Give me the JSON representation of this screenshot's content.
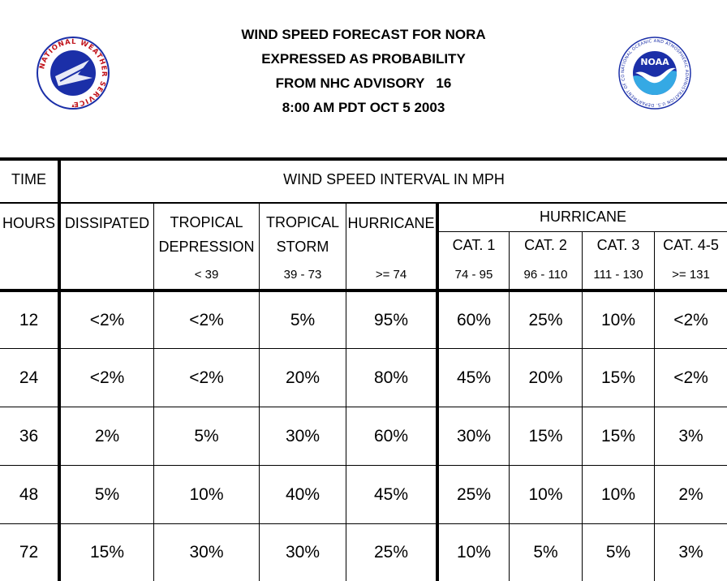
{
  "title": {
    "line1": "WIND SPEED FORECAST FOR NORA",
    "line2": "EXPRESSED AS PROBABILITY",
    "line3": "FROM NHC ADVISORY   16",
    "line4": "8:00 AM PDT OCT 5 2003"
  },
  "logos": {
    "nws": {
      "text": "NATIONAL WEATHER SERVICE"
    },
    "noaa": {
      "abbr": "NOAA",
      "ring_text": "NATIONAL OCEANIC AND ATMOSPHERIC ADMINISTRATION U.S. DEPARTMENT OF COMMERCE"
    }
  },
  "table": {
    "time_label": "TIME",
    "hours_label": "HOURS",
    "interval_label": "WIND SPEED INTERVAL IN MPH",
    "dissipated_label": "DISSIPATED",
    "td": {
      "line1": "TROPICAL",
      "line2": "DEPRESSION",
      "range": "< 39"
    },
    "ts": {
      "line1": "TROPICAL",
      "line2": "STORM",
      "range": "39 - 73"
    },
    "hu": {
      "line1": "HURRICANE",
      "range": ">= 74"
    },
    "hurricane_group": "HURRICANE",
    "cats": [
      {
        "label": "CAT. 1",
        "range": "74 - 95"
      },
      {
        "label": "CAT. 2",
        "range": "96 - 110"
      },
      {
        "label": "CAT. 3",
        "range": "111 - 130"
      },
      {
        "label": "CAT. 4-5",
        "range": ">= 131"
      }
    ],
    "rows": [
      {
        "hours": "12",
        "dissipated": "<2%",
        "td": "<2%",
        "ts": "5%",
        "hu": "95%",
        "cat1": "60%",
        "cat2": "25%",
        "cat3": "10%",
        "cat45": "<2%"
      },
      {
        "hours": "24",
        "dissipated": "<2%",
        "td": "<2%",
        "ts": "20%",
        "hu": "80%",
        "cat1": "45%",
        "cat2": "20%",
        "cat3": "15%",
        "cat45": "<2%"
      },
      {
        "hours": "36",
        "dissipated": "2%",
        "td": "5%",
        "ts": "30%",
        "hu": "60%",
        "cat1": "30%",
        "cat2": "15%",
        "cat3": "15%",
        "cat45": "3%"
      },
      {
        "hours": "48",
        "dissipated": "5%",
        "td": "10%",
        "ts": "40%",
        "hu": "45%",
        "cat1": "25%",
        "cat2": "10%",
        "cat3": "10%",
        "cat45": "2%"
      },
      {
        "hours": "72",
        "dissipated": "15%",
        "td": "30%",
        "ts": "30%",
        "hu": "25%",
        "cat1": "10%",
        "cat2": "5%",
        "cat3": "5%",
        "cat45": "3%"
      }
    ]
  }
}
